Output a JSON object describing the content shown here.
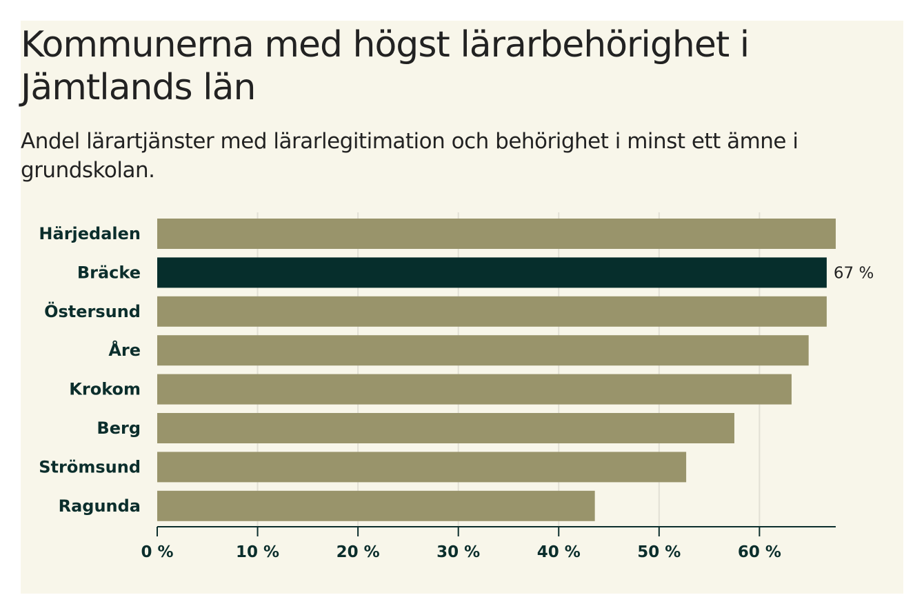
{
  "chart_data": {
    "type": "bar",
    "orientation": "horizontal",
    "title": "Kommunerna med högst lärarbehörighet i Jämtlands län",
    "subtitle": "Andel lärartjänster med lärarlegitimation och behörighet i minst ett ämne i grundskolan.",
    "categories": [
      "Härjedalen",
      "Bräcke",
      "Östersund",
      "Åre",
      "Krokom",
      "Berg",
      "Strömsund",
      "Ragunda"
    ],
    "values": [
      67.6,
      66.7,
      66.7,
      64.9,
      63.2,
      57.5,
      52.7,
      43.6
    ],
    "highlight": "Bräcke",
    "data_labels": [
      {
        "category": "Bräcke",
        "text": "67 %"
      }
    ],
    "xlim": [
      0,
      67.6
    ],
    "ticks": [
      0,
      10,
      20,
      30,
      40,
      50,
      60
    ],
    "tick_labels": [
      "0 %",
      "10 %",
      "20 %",
      "30 %",
      "40 %",
      "50 %",
      "60 %"
    ],
    "grid": true,
    "colors": {
      "bar": "#99946b",
      "highlight": "#062e2c",
      "grid": "#e2e0d5",
      "axis": "#0b2e2c",
      "background": "#f8f6ea"
    }
  }
}
